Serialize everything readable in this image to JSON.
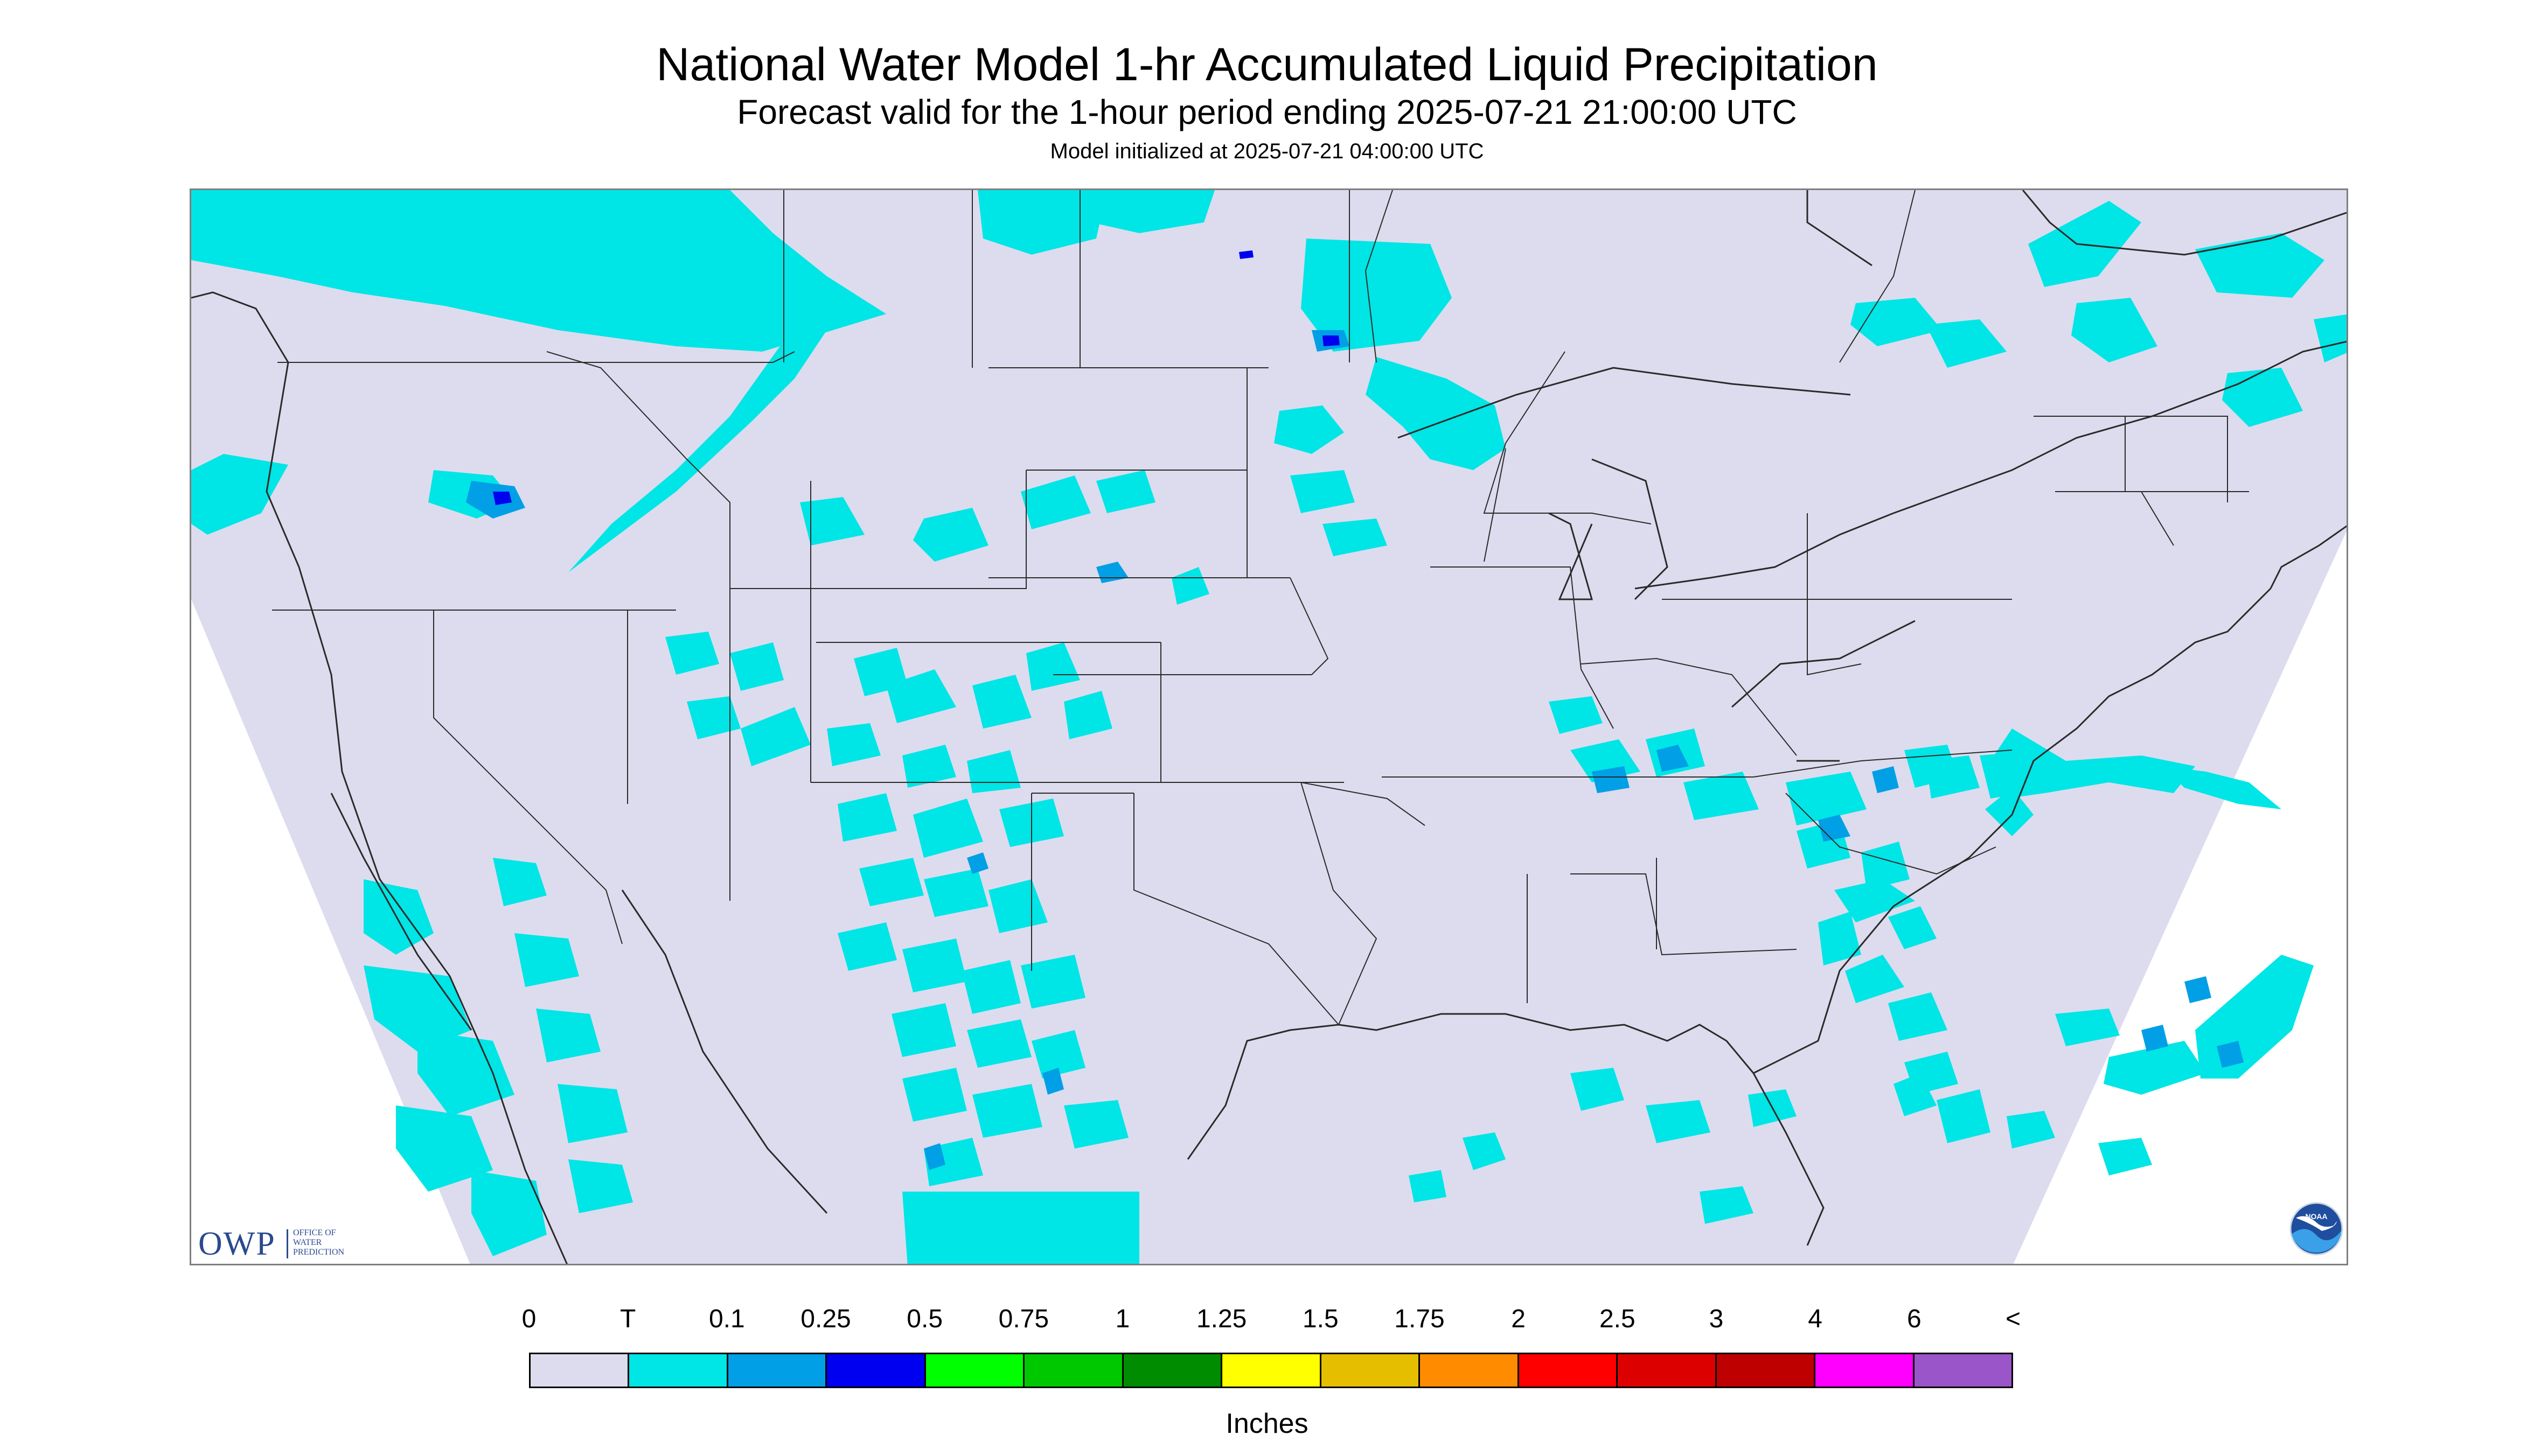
{
  "header": {
    "title": "National Water Model 1-hr Accumulated Liquid Precipitation",
    "subtitle": "Forecast valid for the 1-hour period ending 2025-07-21 21:00:00 UTC",
    "initialized": "Model initialized at 2025-07-21 04:00:00 UTC"
  },
  "map": {
    "background_color": "#dcdcee",
    "outside_color": "#ffffff",
    "boundary_color": "#2a2a2a",
    "light_rain_color": "#00e5e5",
    "moderate_rain_color": "#009fe6",
    "heavy_rain_color": "#0000f0"
  },
  "logos": {
    "owp": {
      "letters": "OWP",
      "subtext": "OFFICE OF\nWATER\nPREDICTION"
    },
    "noaa": {
      "text": "NOAA"
    }
  },
  "legend": {
    "labels": [
      "0",
      "T",
      "0.1",
      "0.25",
      "0.5",
      "0.75",
      "1",
      "1.25",
      "1.5",
      "1.75",
      "2",
      "2.5",
      "3",
      "4",
      "6",
      "<"
    ],
    "colors": [
      "#dcdcee",
      "#00e5e5",
      "#009fe6",
      "#0000f0",
      "#00ff00",
      "#00c800",
      "#008c00",
      "#ffff00",
      "#e6be00",
      "#ff8c00",
      "#ff0000",
      "#dc0000",
      "#be0000",
      "#ff00ff",
      "#9a55c8"
    ],
    "units": "Inches"
  }
}
